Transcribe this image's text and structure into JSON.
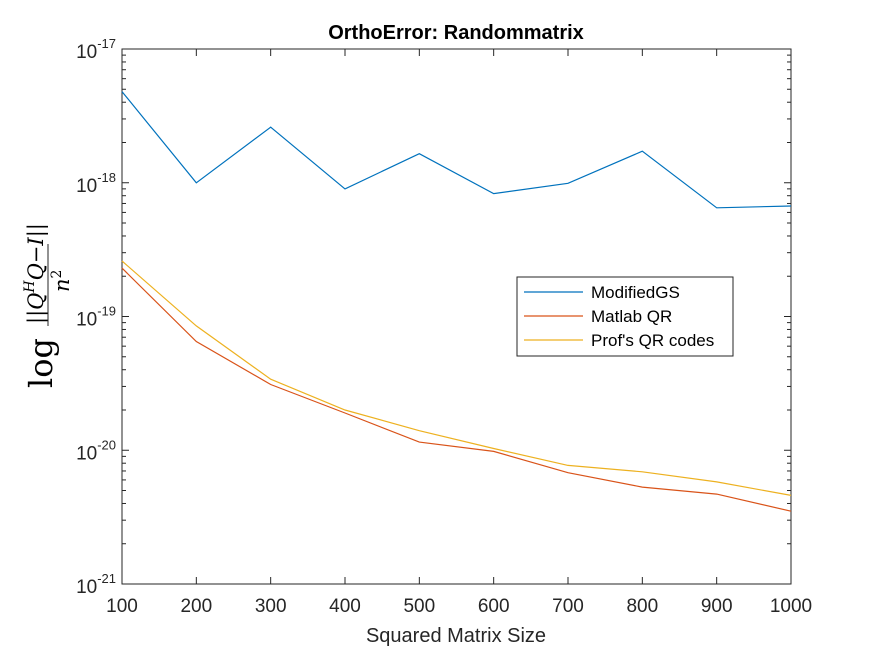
{
  "chart_data": {
    "type": "line",
    "title": "OrthoError: Randommatrix",
    "xlabel": "Squared Matrix Size",
    "ylabel": {
      "prefix": "log",
      "numerator": "||Q",
      "sup": "H",
      "numerator_rest": "Q−I||",
      "denominator": "n",
      "denominator_sup": "2"
    },
    "x": [
      100,
      200,
      300,
      400,
      500,
      600,
      700,
      800,
      900,
      1000
    ],
    "xlim": [
      100,
      1000
    ],
    "xticks": [
      100,
      200,
      300,
      400,
      500,
      600,
      700,
      800,
      900,
      1000
    ],
    "yscale": "log",
    "ylim": [
      1e-21,
      1e-17
    ],
    "yticks": [
      {
        "value": 1e-21,
        "base": "10",
        "exp": "-21"
      },
      {
        "value": 1e-20,
        "base": "10",
        "exp": "-20"
      },
      {
        "value": 1e-19,
        "base": "10",
        "exp": "-19"
      },
      {
        "value": 1e-18,
        "base": "10",
        "exp": "-18"
      },
      {
        "value": 1e-17,
        "base": "10",
        "exp": "-17"
      }
    ],
    "grid": false,
    "legend": "right",
    "series": [
      {
        "name": "ModifiedGS",
        "color": "#0072BD",
        "values": [
          4.8e-18,
          1e-18,
          2.6e-18,
          9e-19,
          1.65e-18,
          8.3e-19,
          9.9e-19,
          1.72e-18,
          6.5e-19,
          6.7e-19
        ]
      },
      {
        "name": "Matlab QR",
        "color": "#D95319",
        "values": [
          2.3e-19,
          6.5e-20,
          3.1e-20,
          1.9e-20,
          1.15e-20,
          9.8e-21,
          6.8e-21,
          5.3e-21,
          4.7e-21,
          3.5e-21
        ]
      },
      {
        "name": "Prof's QR codes",
        "color": "#EDB120",
        "values": [
          2.6e-19,
          8.5e-20,
          3.4e-20,
          2e-20,
          1.4e-20,
          1.03e-20,
          7.7e-21,
          6.9e-21,
          5.8e-21,
          4.6e-21
        ]
      }
    ]
  }
}
